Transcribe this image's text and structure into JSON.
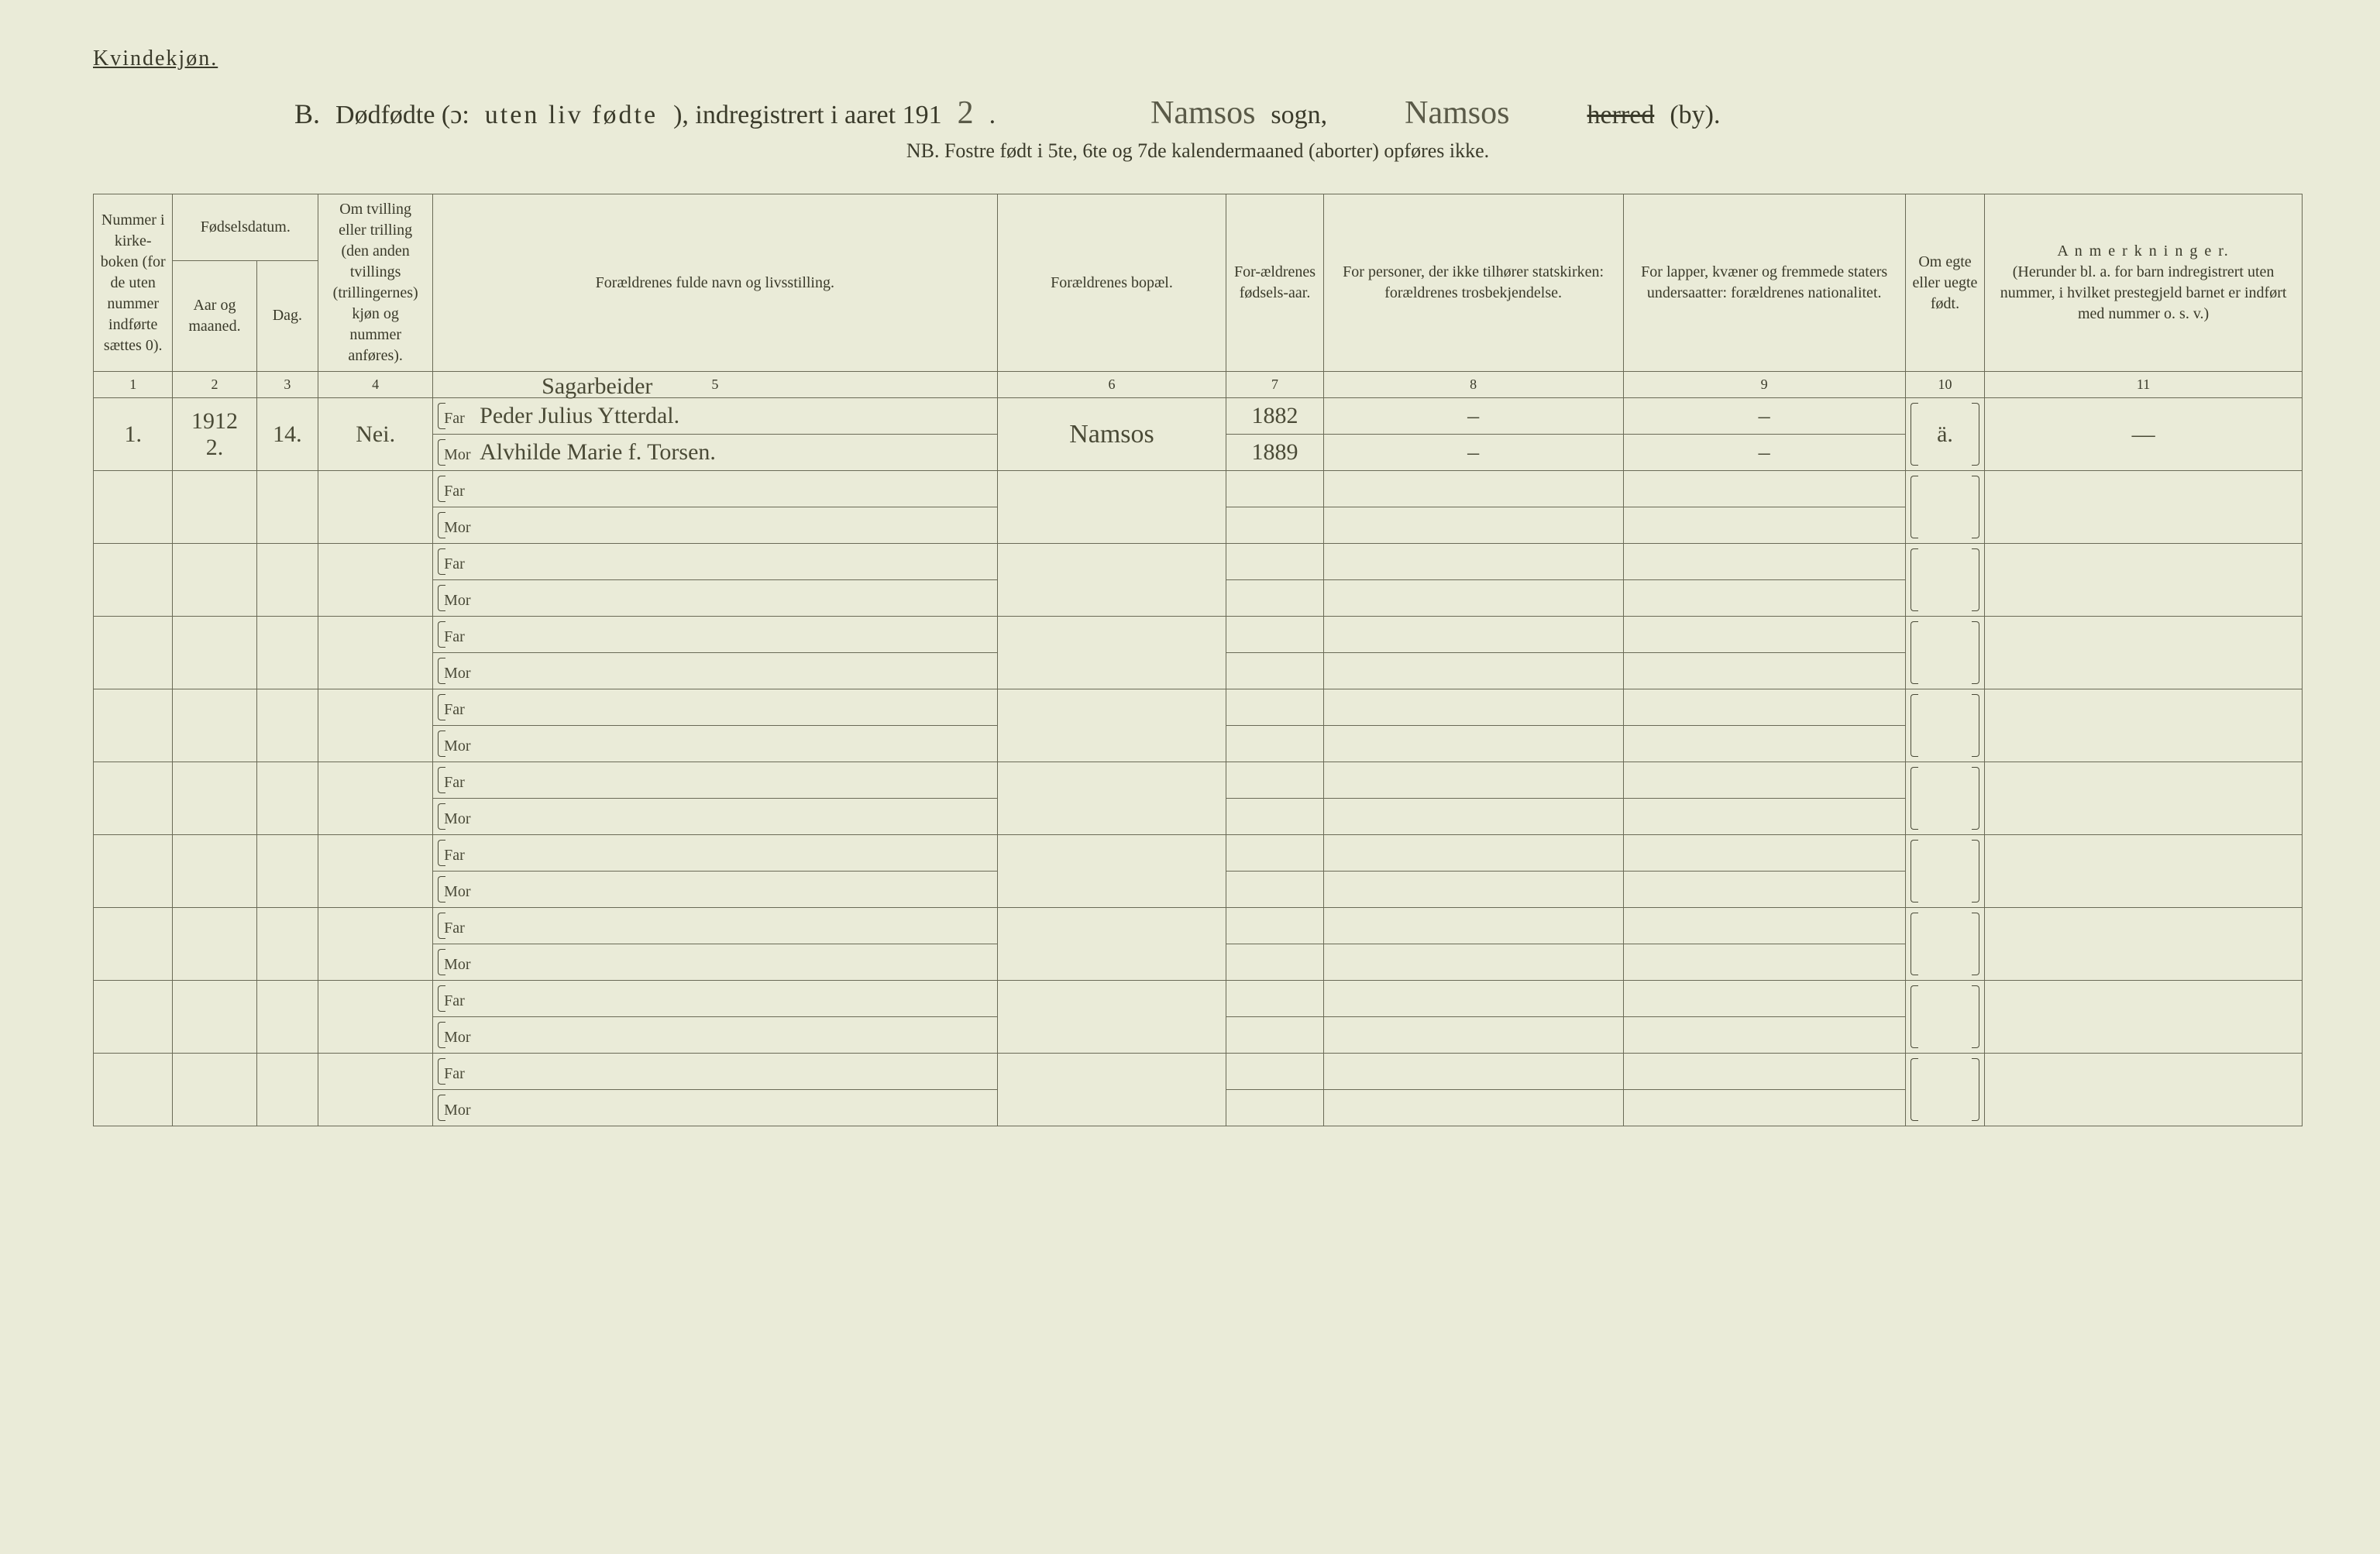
{
  "gender_label": "Kvindekjøn.",
  "title": {
    "prefix_letter": "B.",
    "text_a": "Dødfødte (ɔ:",
    "text_b": "uten liv fødte",
    "text_c": "), indregistrert i aaret 191",
    "year_digit": "2",
    "period": ".",
    "sogn_hand": "Namsos",
    "sogn_label": "sogn,",
    "herred_hand": "Namsos",
    "herred_strike": "herred",
    "by_label": "(by)."
  },
  "nb": "NB.  Fostre født i 5te, 6te og 7de kalendermaaned (aborter) opføres ikke.",
  "headers": {
    "c1": "Nummer i kirke-boken (for de uten nummer indførte sættes 0).",
    "c2_group": "Fødselsdatum.",
    "c2": "Aar og maaned.",
    "c3": "Dag.",
    "c4": "Om tvilling eller trilling (den anden tvillings (trillingernes) kjøn og nummer anføres).",
    "c5": "Forældrenes fulde navn og livsstilling.",
    "c6": "Forældrenes bopæl.",
    "c7": "For-ældrenes fødsels-aar.",
    "c8": "For personer, der ikke tilhører statskirken: forældrenes trosbekjendelse.",
    "c9": "For lapper, kvæner og fremmede staters undersaatter: forældrenes nationalitet.",
    "c10": "Om egte eller uegte født.",
    "c11_title": "A n m e r k n i n g e r.",
    "c11_sub": "(Herunder bl. a. for barn indregistrert uten nummer, i hvilket prestegjeld barnet er indført med nummer o. s. v.)"
  },
  "colnums": [
    "1",
    "2",
    "3",
    "4",
    "5",
    "6",
    "7",
    "8",
    "9",
    "10",
    "11"
  ],
  "labels": {
    "far": "Far",
    "mor": "Mor"
  },
  "entries": [
    {
      "num": "1.",
      "year_month": "1912\n2.",
      "day": "14.",
      "twin": "Nei.",
      "occupation": "Sagarbeider",
      "far": "Peder Julius Ytterdal.",
      "mor": "Alvhilde Marie f. Torsen.",
      "bopael": "Namsos",
      "far_year": "1882",
      "mor_year": "1889",
      "tros_far": "–",
      "tros_mor": "–",
      "nat_far": "–",
      "nat_mor": "–",
      "egte": "ä.",
      "anm": "—"
    },
    {},
    {},
    {},
    {},
    {},
    {},
    {},
    {},
    {}
  ]
}
